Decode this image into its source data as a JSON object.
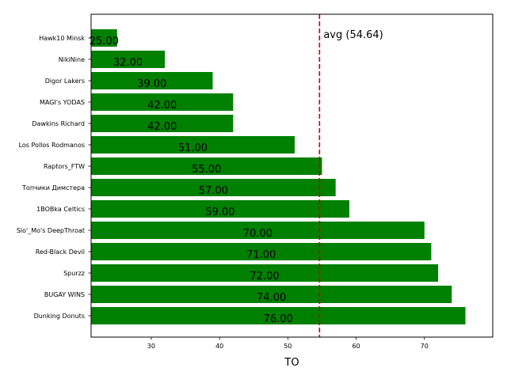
{
  "chart_data": {
    "type": "bar",
    "orientation": "horizontal",
    "categories": [
      "Hawk10 Minsk",
      "NikiNine",
      "Digor Lakers",
      "MAGI's YODAS",
      "Dawkins Richard",
      "Los Pollos Rodmanos",
      "Raptors_FTW",
      "Топчики Димстера",
      "1BOBka Celtics",
      "Slo'_Mo's DeepThroat",
      "Red-Black Devil",
      "Spurzz",
      "BUGAY WINS",
      "Dunking Donuts"
    ],
    "values": [
      25,
      32,
      39,
      42,
      42,
      51,
      55,
      57,
      59,
      70,
      71,
      72,
      74,
      76
    ],
    "value_labels": [
      "25.00",
      "32.00",
      "39.00",
      "42.00",
      "42.00",
      "51.00",
      "55.00",
      "57.00",
      "59.00",
      "70.00",
      "71.00",
      "72.00",
      "74.00",
      "76.00"
    ],
    "bar_color": "#008000",
    "xlabel": "TO",
    "ylabel": "",
    "title": "",
    "xlim": [
      21.2,
      80.0
    ],
    "xticks": [
      30,
      40,
      50,
      60,
      70
    ],
    "grid": false,
    "average": {
      "value": 54.64,
      "label": "avg (54.64)",
      "color": "#cc0000",
      "style": "dashed"
    }
  }
}
